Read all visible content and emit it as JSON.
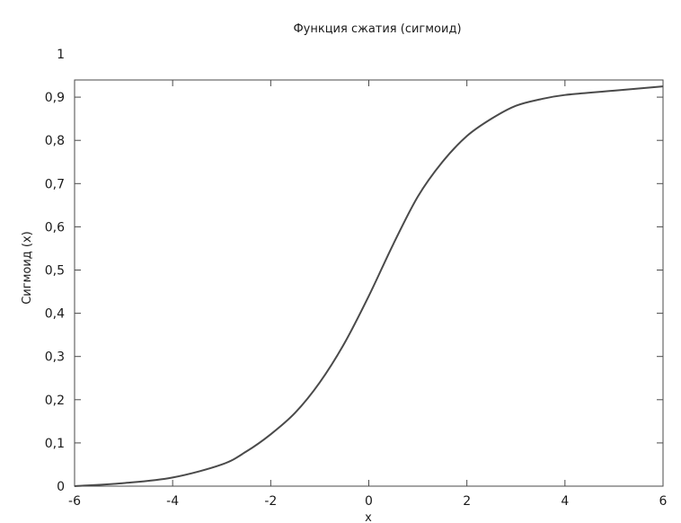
{
  "chart_data": {
    "type": "line",
    "title": "Функция сжатия (сигмоид)",
    "xlabel": "x",
    "ylabel": "Сигмоид (x)",
    "xlim": [
      -6,
      6
    ],
    "ylim": [
      0,
      1
    ],
    "grid": false,
    "x_ticks": [
      {
        "value": -6,
        "label": "-6"
      },
      {
        "value": -4,
        "label": "-4"
      },
      {
        "value": -2,
        "label": "-2"
      },
      {
        "value": 0,
        "label": "0"
      },
      {
        "value": 2,
        "label": "2"
      },
      {
        "value": 4,
        "label": "4"
      },
      {
        "value": 6,
        "label": "6"
      }
    ],
    "y_ticks": [
      {
        "value": 0,
        "label": "0"
      },
      {
        "value": 0.1,
        "label": "0,1"
      },
      {
        "value": 0.2,
        "label": "0,2"
      },
      {
        "value": 0.3,
        "label": "0,3"
      },
      {
        "value": 0.4,
        "label": "0,4"
      },
      {
        "value": 0.5,
        "label": "0,5"
      },
      {
        "value": 0.6,
        "label": "0,6"
      },
      {
        "value": 0.7,
        "label": "0,7"
      },
      {
        "value": 0.8,
        "label": "0,8"
      },
      {
        "value": 0.9,
        "label": "0,9"
      },
      {
        "value": 1,
        "label": "1"
      }
    ],
    "series": [
      {
        "color": "#4a4a4a",
        "x": [
          -6,
          -5,
          -4,
          -3,
          -2.5,
          -2,
          -1.5,
          -1,
          -0.5,
          0,
          0.5,
          1,
          1.5,
          2,
          2.5,
          3,
          3.5,
          4,
          5,
          6
        ],
        "y": [
          0.0,
          0.007,
          0.02,
          0.05,
          0.08,
          0.12,
          0.17,
          0.24,
          0.33,
          0.44,
          0.56,
          0.67,
          0.75,
          0.81,
          0.85,
          0.88,
          0.895,
          0.905,
          0.915,
          0.925
        ]
      }
    ]
  }
}
